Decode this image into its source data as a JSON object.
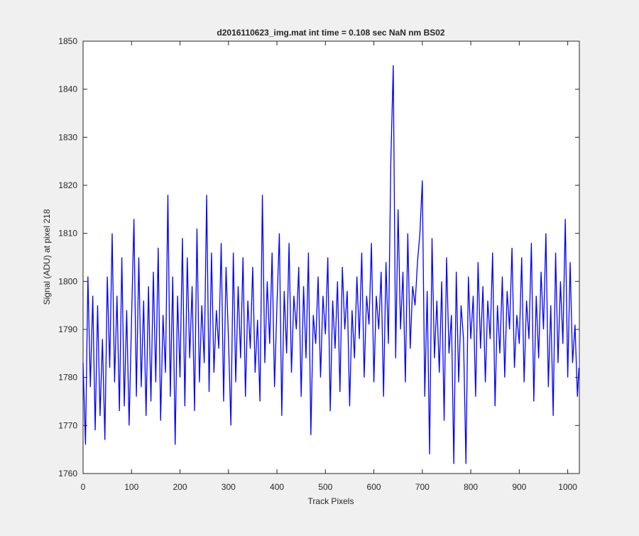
{
  "chart_data": {
    "type": "line",
    "title": "d2016110623_img.mat int time = 0.108 sec  NaN nm BS02",
    "xlabel": "Track Pixels",
    "ylabel": "Signal (ADU) at pixel 218",
    "x": [
      0,
      5,
      10,
      15,
      20,
      25,
      30,
      35,
      40,
      45,
      50,
      55,
      60,
      65,
      70,
      75,
      80,
      85,
      90,
      95,
      100,
      105,
      110,
      115,
      120,
      125,
      130,
      135,
      140,
      145,
      150,
      155,
      160,
      165,
      170,
      175,
      180,
      185,
      190,
      195,
      200,
      205,
      210,
      215,
      220,
      225,
      230,
      235,
      240,
      245,
      250,
      255,
      260,
      265,
      270,
      275,
      280,
      285,
      290,
      295,
      300,
      305,
      310,
      315,
      320,
      325,
      330,
      335,
      340,
      345,
      350,
      355,
      360,
      365,
      370,
      375,
      380,
      385,
      390,
      395,
      400,
      405,
      410,
      415,
      420,
      425,
      430,
      435,
      440,
      445,
      450,
      455,
      460,
      465,
      470,
      475,
      480,
      485,
      490,
      495,
      500,
      505,
      510,
      515,
      520,
      525,
      530,
      535,
      540,
      545,
      550,
      555,
      560,
      565,
      570,
      575,
      580,
      585,
      590,
      595,
      600,
      605,
      610,
      615,
      620,
      625,
      630,
      635,
      640,
      645,
      650,
      655,
      660,
      665,
      670,
      675,
      680,
      685,
      690,
      695,
      700,
      705,
      710,
      715,
      720,
      725,
      730,
      735,
      740,
      745,
      750,
      755,
      760,
      765,
      770,
      775,
      780,
      785,
      790,
      795,
      800,
      805,
      810,
      815,
      820,
      825,
      830,
      835,
      840,
      845,
      850,
      855,
      860,
      865,
      870,
      875,
      880,
      885,
      890,
      895,
      900,
      905,
      910,
      915,
      920,
      925,
      930,
      935,
      940,
      945,
      950,
      955,
      960,
      965,
      970,
      975,
      980,
      985,
      990,
      995,
      1000,
      1005,
      1010,
      1015,
      1020,
      1023
    ],
    "series": [
      {
        "color": "#0000ff",
        "values": [
          1783,
          1766,
          1801,
          1778,
          1797,
          1769,
          1795,
          1772,
          1788,
          1767,
          1801,
          1782,
          1810,
          1779,
          1797,
          1773,
          1805,
          1774,
          1794,
          1770,
          1792,
          1813,
          1776,
          1805,
          1778,
          1796,
          1772,
          1799,
          1775,
          1802,
          1779,
          1807,
          1771,
          1793,
          1781,
          1818,
          1776,
          1801,
          1766,
          1797,
          1780,
          1809,
          1774,
          1805,
          1784,
          1799,
          1773,
          1811,
          1779,
          1795,
          1783,
          1818,
          1777,
          1806,
          1781,
          1794,
          1786,
          1808,
          1775,
          1803,
          1788,
          1770,
          1806,
          1779,
          1799,
          1784,
          1805,
          1776,
          1796,
          1786,
          1803,
          1781,
          1792,
          1775,
          1818,
          1783,
          1800,
          1787,
          1806,
          1778,
          1795,
          1810,
          1772,
          1798,
          1785,
          1808,
          1781,
          1797,
          1790,
          1803,
          1776,
          1799,
          1784,
          1806,
          1768,
          1793,
          1787,
          1801,
          1780,
          1797,
          1789,
          1805,
          1773,
          1796,
          1786,
          1800,
          1777,
          1803,
          1790,
          1798,
          1774,
          1794,
          1784,
          1801,
          1788,
          1806,
          1780,
          1797,
          1791,
          1808,
          1779,
          1797,
          1790,
          1802,
          1776,
          1804,
          1787,
          1825,
          1845,
          1784,
          1815,
          1790,
          1802,
          1779,
          1810,
          1786,
          1799,
          1795,
          1804,
          1810,
          1821,
          1776,
          1798,
          1764,
          1809,
          1784,
          1796,
          1781,
          1800,
          1771,
          1805,
          1785,
          1793,
          1762,
          1802,
          1779,
          1795,
          1788,
          1762,
          1801,
          1788,
          1797,
          1776,
          1804,
          1786,
          1799,
          1779,
          1796,
          1788,
          1806,
          1774,
          1795,
          1785,
          1801,
          1780,
          1798,
          1790,
          1807,
          1782,
          1793,
          1787,
          1805,
          1779,
          1796,
          1788,
          1808,
          1775,
          1797,
          1784,
          1802,
          1790,
          1810,
          1778,
          1795,
          1772,
          1806,
          1783,
          1800,
          1787,
          1813,
          1780,
          1804,
          1783,
          1791,
          1776,
          1782
        ]
      }
    ],
    "xlim": [
      0,
      1024
    ],
    "xticks": [
      0,
      100,
      200,
      300,
      400,
      500,
      600,
      700,
      800,
      900,
      1000
    ],
    "ylim": [
      1760,
      1850
    ],
    "yticks": [
      1760,
      1770,
      1780,
      1790,
      1800,
      1810,
      1820,
      1830,
      1840,
      1850
    ]
  }
}
